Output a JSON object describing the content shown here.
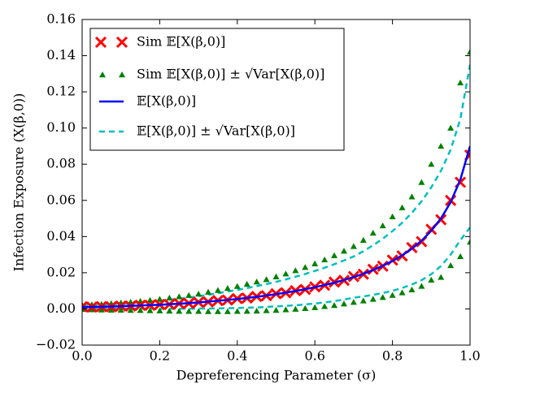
{
  "chart_data": {
    "type": "line",
    "xlabel": "Depreferencing Parameter (σ)",
    "ylabel": "Infection Exposure (X(β,0))",
    "xlim": [
      0,
      1
    ],
    "ylim": [
      -0.02,
      0.16
    ],
    "xticks": [
      {
        "value": 0,
        "label": "0.0"
      },
      0.2,
      0.4,
      0.6,
      0.8,
      {
        "value": 1,
        "label": "1.0"
      }
    ],
    "yticks": [
      {
        "value": -0.02,
        "label": "−0.02"
      },
      {
        "value": 0,
        "label": "0.00"
      },
      0.02,
      0.04,
      0.06,
      0.08,
      {
        "value": 0.1,
        "label": "0.10"
      },
      0.12,
      0.14,
      0.16
    ],
    "legend": "upper left",
    "x": [
      0,
      0.025,
      0.05,
      0.075,
      0.1,
      0.125,
      0.15,
      0.175,
      0.2,
      0.225,
      0.25,
      0.275,
      0.3,
      0.325,
      0.35,
      0.375,
      0.4,
      0.425,
      0.45,
      0.475,
      0.5,
      0.525,
      0.55,
      0.575,
      0.6,
      0.625,
      0.65,
      0.675,
      0.7,
      0.725,
      0.75,
      0.775,
      0.8,
      0.825,
      0.85,
      0.875,
      0.9,
      0.925,
      0.95,
      0.975,
      1
    ],
    "series": [
      {
        "name": "Sim 𝔼[X(β,0)]",
        "color": "#ff0000",
        "marker": "x",
        "values": [
          0.0012,
          0.001,
          0.0013,
          0.0012,
          0.0016,
          0.0016,
          0.002,
          0.002,
          0.0024,
          0.0025,
          0.003,
          0.0031,
          0.0037,
          0.0039,
          0.0046,
          0.0049,
          0.0057,
          0.006,
          0.0069,
          0.0073,
          0.0084,
          0.0089,
          0.0101,
          0.0108,
          0.0122,
          0.0131,
          0.0148,
          0.0158,
          0.0179,
          0.0192,
          0.0219,
          0.0236,
          0.027,
          0.0293,
          0.0339,
          0.0372,
          0.044,
          0.0493,
          0.06,
          0.07,
          0.085
        ]
      },
      {
        "name": "Sim 𝔼[X(β,0)] ± √Var[X(β,0)]",
        "color": "#008000",
        "marker": "triangle",
        "upper": [
          0.0022,
          0.0024,
          0.0026,
          0.003,
          0.0034,
          0.0038,
          0.0043,
          0.0048,
          0.0054,
          0.0061,
          0.0068,
          0.0075,
          0.0083,
          0.0093,
          0.0103,
          0.0114,
          0.0125,
          0.0137,
          0.015,
          0.0163,
          0.0178,
          0.0194,
          0.0212,
          0.023,
          0.025,
          0.0272,
          0.0295,
          0.032,
          0.0346,
          0.038,
          0.042,
          0.046,
          0.051,
          0.056,
          0.062,
          0.07,
          0.08,
          0.09,
          0.1,
          0.125,
          0.142
        ],
        "lower": [
          -0.0002,
          -0.0004,
          -0.0005,
          -0.0006,
          -0.0006,
          -0.0007,
          -0.0008,
          -0.0009,
          -0.001,
          -0.0011,
          -0.0012,
          -0.0013,
          -0.0013,
          -0.0014,
          -0.0014,
          -0.0014,
          -0.0013,
          -0.0012,
          -0.0011,
          -0.0009,
          -0.0007,
          -0.0004,
          -0.0001,
          0.0003,
          0.0008,
          0.0014,
          0.002,
          0.0028,
          0.0037,
          0.0045,
          0.0054,
          0.0064,
          0.0076,
          0.009,
          0.0106,
          0.0126,
          0.016,
          0.0175,
          0.024,
          0.029,
          0.037
        ]
      },
      {
        "name": "𝔼[X(β,0)]",
        "color": "#0000ff",
        "marker": "line",
        "values": [
          0.001,
          0.0011,
          0.0012,
          0.0013,
          0.0015,
          0.0017,
          0.0019,
          0.0021,
          0.0023,
          0.0026,
          0.0029,
          0.0032,
          0.0036,
          0.004,
          0.0045,
          0.005,
          0.0055,
          0.0061,
          0.0067,
          0.0074,
          0.0082,
          0.009,
          0.0099,
          0.0109,
          0.012,
          0.0132,
          0.0145,
          0.016,
          0.0176,
          0.0194,
          0.0215,
          0.0238,
          0.0265,
          0.0296,
          0.0333,
          0.0377,
          0.0432,
          0.05,
          0.059,
          0.0715,
          0.09
        ]
      },
      {
        "name": "𝔼[X(β,0)] ± √Var[X(β,0)]",
        "color": "#00bfbf",
        "marker": "dashed",
        "upper": [
          0.0018,
          0.002,
          0.0022,
          0.0025,
          0.0028,
          0.0032,
          0.0036,
          0.004,
          0.0045,
          0.0051,
          0.0057,
          0.0063,
          0.007,
          0.0078,
          0.0087,
          0.0096,
          0.0105,
          0.0115,
          0.0126,
          0.0137,
          0.015,
          0.0163,
          0.0178,
          0.0193,
          0.021,
          0.0228,
          0.0247,
          0.0268,
          0.029,
          0.0319,
          0.0352,
          0.0388,
          0.043,
          0.0476,
          0.0531,
          0.0595,
          0.0672,
          0.0763,
          0.088,
          0.105,
          0.135
        ],
        "lower": [
          0.0002,
          0.0002,
          0.0002,
          0.0001,
          0.0002,
          0.0002,
          0.0002,
          0.0002,
          0.0001,
          0.0001,
          0.0001,
          0.0001,
          0.0002,
          0.0002,
          0.0003,
          0.0004,
          0.0005,
          0.0007,
          0.0008,
          0.0011,
          0.0014,
          0.0017,
          0.002,
          0.0025,
          0.003,
          0.0036,
          0.0043,
          0.0052,
          0.0062,
          0.0069,
          0.0078,
          0.0088,
          0.01,
          0.0116,
          0.0135,
          0.0159,
          0.0192,
          0.0237,
          0.03,
          0.038,
          0.045
        ]
      }
    ]
  }
}
